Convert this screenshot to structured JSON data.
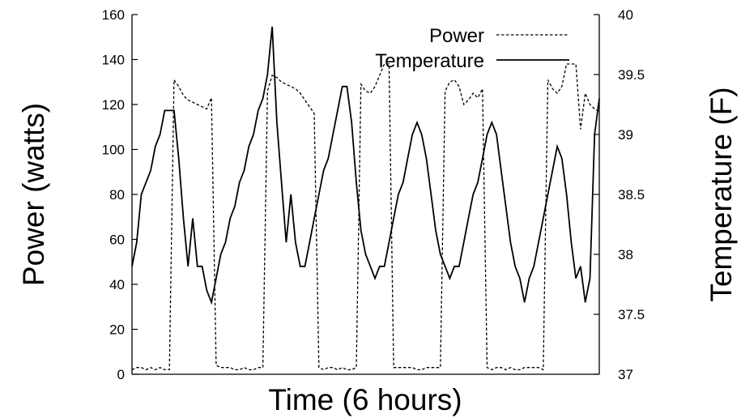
{
  "chart_data": {
    "type": "line",
    "xlabel": "Time (6 hours)",
    "ylabel": "Power (watts)",
    "y2label": "Temperature (F)",
    "xlim": [
      0,
      100
    ],
    "ylim": [
      0,
      160
    ],
    "y2lim": [
      37,
      40
    ],
    "grid": false,
    "legend_position": "top-right",
    "y_ticks": [
      "0",
      "20",
      "40",
      "60",
      "80",
      "100",
      "120",
      "140",
      "160"
    ],
    "y2_ticks": [
      "37",
      "37.5",
      "38",
      "38.5",
      "39",
      "39.5",
      "40"
    ],
    "series": [
      {
        "name": "Power",
        "axis": "left",
        "style": "dashed",
        "x": [
          0,
          1,
          2,
          3,
          4,
          5,
          6,
          7,
          8,
          9,
          10,
          11,
          12,
          13,
          14,
          15,
          16,
          17,
          18,
          19,
          20,
          21,
          22,
          23,
          24,
          25,
          26,
          27,
          28,
          29,
          30,
          31,
          32,
          33,
          34,
          35,
          36,
          37,
          38,
          39,
          40,
          41,
          42,
          43,
          44,
          45,
          46,
          47,
          48,
          49,
          50,
          51,
          52,
          53,
          54,
          55,
          56,
          57,
          58,
          59,
          60,
          61,
          62,
          63,
          64,
          65,
          66,
          67,
          68,
          69,
          70,
          71,
          72,
          73,
          74,
          75,
          76,
          77,
          78,
          79,
          80,
          81,
          82,
          83,
          84,
          85,
          86,
          87,
          88,
          89,
          90,
          91,
          92,
          93,
          94,
          95,
          96,
          97,
          98,
          99,
          100
        ],
        "values": [
          2,
          3,
          3,
          2,
          3,
          2,
          3,
          2,
          2,
          131,
          128,
          124,
          122,
          121,
          120,
          119,
          118,
          123,
          4,
          3,
          3,
          3,
          2,
          2,
          3,
          2,
          2,
          3,
          3,
          126,
          133,
          132,
          130,
          129,
          128,
          127,
          125,
          122,
          119,
          116,
          3,
          2,
          3,
          3,
          2,
          3,
          2,
          2,
          3,
          129,
          126,
          125,
          128,
          133,
          138,
          138,
          3,
          3,
          3,
          3,
          3,
          2,
          2,
          3,
          3,
          3,
          3,
          126,
          130,
          131,
          128,
          120,
          122,
          125,
          123,
          127,
          3,
          2,
          3,
          3,
          2,
          3,
          2,
          2,
          3,
          3,
          3,
          3,
          2,
          131,
          127,
          125,
          128,
          138,
          138,
          138,
          109,
          125,
          120,
          118,
          117
        ]
      },
      {
        "name": "Temperature",
        "axis": "right",
        "style": "solid",
        "x": [
          0,
          1,
          2,
          3,
          4,
          5,
          6,
          7,
          8,
          9,
          10,
          11,
          12,
          13,
          14,
          15,
          16,
          17,
          18,
          19,
          20,
          21,
          22,
          23,
          24,
          25,
          26,
          27,
          28,
          29,
          30,
          31,
          32,
          33,
          34,
          35,
          36,
          37,
          38,
          39,
          40,
          41,
          42,
          43,
          44,
          45,
          46,
          47,
          48,
          49,
          50,
          51,
          52,
          53,
          54,
          55,
          56,
          57,
          58,
          59,
          60,
          61,
          62,
          63,
          64,
          65,
          66,
          67,
          68,
          69,
          70,
          71,
          72,
          73,
          74,
          75,
          76,
          77,
          78,
          79,
          80,
          81,
          82,
          83,
          84,
          85,
          86,
          87,
          88,
          89,
          90,
          91,
          92,
          93,
          94,
          95,
          96,
          97,
          98,
          99,
          100
        ],
        "values": [
          37.9,
          38.1,
          38.5,
          38.6,
          38.7,
          38.9,
          39.0,
          39.2,
          39.2,
          39.2,
          38.8,
          38.3,
          37.9,
          38.3,
          37.9,
          37.9,
          37.7,
          37.6,
          37.8,
          38.0,
          38.1,
          38.3,
          38.4,
          38.6,
          38.7,
          38.9,
          39.0,
          39.2,
          39.3,
          39.5,
          39.9,
          39.1,
          38.6,
          38.1,
          38.5,
          38.1,
          37.9,
          37.9,
          38.1,
          38.3,
          38.5,
          38.7,
          38.8,
          39.0,
          39.2,
          39.4,
          39.4,
          39.1,
          38.6,
          38.2,
          38.0,
          37.9,
          37.8,
          37.9,
          37.9,
          38.1,
          38.3,
          38.5,
          38.6,
          38.8,
          39.0,
          39.1,
          39.0,
          38.8,
          38.5,
          38.2,
          38.0,
          37.9,
          37.8,
          37.9,
          37.9,
          38.1,
          38.3,
          38.5,
          38.6,
          38.8,
          39.0,
          39.1,
          39.0,
          38.7,
          38.4,
          38.1,
          37.9,
          37.8,
          37.6,
          37.8,
          37.9,
          38.1,
          38.3,
          38.5,
          38.7,
          38.9,
          38.8,
          38.5,
          38.1,
          37.8,
          37.9,
          37.6,
          37.8,
          39.0,
          39.3
        ]
      }
    ]
  }
}
